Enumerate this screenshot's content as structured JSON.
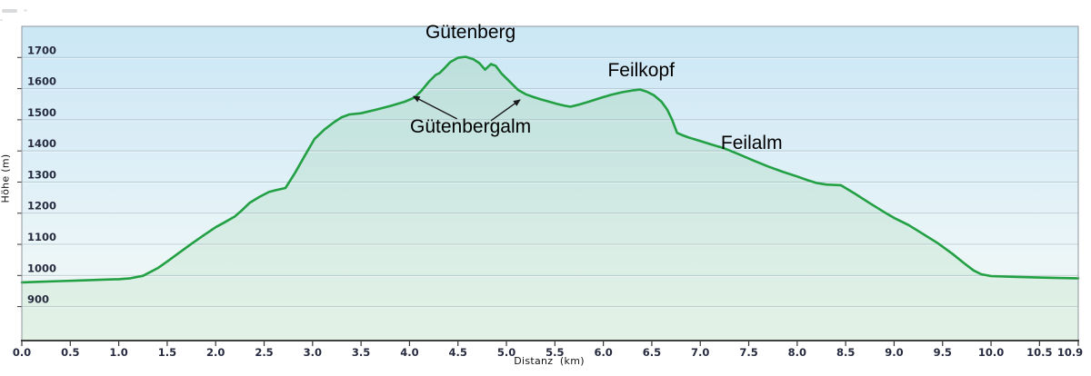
{
  "chart_data": {
    "type": "area",
    "title": "",
    "xlabel": "Distanz  (km)",
    "ylabel": "Höhe (m)",
    "xlim": [
      0,
      10.9
    ],
    "ylim": [
      791,
      1800
    ],
    "grid": "horizontal-only",
    "legend": "none",
    "x_tick_labels": [
      "0.0",
      "0.5",
      "1.0",
      "1.5",
      "2.0",
      "2.5",
      "3.0",
      "3.5",
      "4.0",
      "4.5",
      "5.0",
      "5.5",
      "6.0",
      "6.5",
      "7.0",
      "7.5",
      "8.0",
      "8.5",
      "9.0",
      "9.5",
      "10.0",
      "10.5",
      "10.9"
    ],
    "y_tick_labels": [
      "900",
      "1000",
      "1100",
      "1200",
      "1300",
      "1400",
      "1500",
      "1600",
      "1700"
    ],
    "series": [
      {
        "name": "elevation-profile",
        "units": {
          "x": "km",
          "y": "m"
        },
        "points": [
          [
            0.0,
            978
          ],
          [
            0.2,
            980
          ],
          [
            0.4,
            982
          ],
          [
            0.6,
            984
          ],
          [
            0.8,
            986
          ],
          [
            1.0,
            988
          ],
          [
            1.12,
            991
          ],
          [
            1.25,
            999
          ],
          [
            1.4,
            1023
          ],
          [
            1.5,
            1045
          ],
          [
            1.62,
            1072
          ],
          [
            1.75,
            1102
          ],
          [
            1.88,
            1130
          ],
          [
            2.0,
            1155
          ],
          [
            2.1,
            1172
          ],
          [
            2.2,
            1190
          ],
          [
            2.28,
            1212
          ],
          [
            2.35,
            1233
          ],
          [
            2.45,
            1252
          ],
          [
            2.55,
            1268
          ],
          [
            2.62,
            1274
          ],
          [
            2.72,
            1281
          ],
          [
            2.82,
            1330
          ],
          [
            2.92,
            1385
          ],
          [
            3.02,
            1438
          ],
          [
            3.12,
            1468
          ],
          [
            3.22,
            1492
          ],
          [
            3.3,
            1508
          ],
          [
            3.38,
            1517
          ],
          [
            3.5,
            1521
          ],
          [
            3.65,
            1532
          ],
          [
            3.8,
            1544
          ],
          [
            3.95,
            1558
          ],
          [
            4.05,
            1571
          ],
          [
            4.12,
            1592
          ],
          [
            4.2,
            1622
          ],
          [
            4.27,
            1644
          ],
          [
            4.31,
            1650
          ],
          [
            4.35,
            1662
          ],
          [
            4.42,
            1685
          ],
          [
            4.5,
            1699
          ],
          [
            4.58,
            1702
          ],
          [
            4.66,
            1694
          ],
          [
            4.72,
            1682
          ],
          [
            4.78,
            1661
          ],
          [
            4.84,
            1679
          ],
          [
            4.89,
            1673
          ],
          [
            4.95,
            1648
          ],
          [
            5.03,
            1624
          ],
          [
            5.12,
            1596
          ],
          [
            5.2,
            1582
          ],
          [
            5.27,
            1574
          ],
          [
            5.35,
            1566
          ],
          [
            5.43,
            1559
          ],
          [
            5.52,
            1551
          ],
          [
            5.6,
            1545
          ],
          [
            5.66,
            1542
          ],
          [
            5.75,
            1549
          ],
          [
            5.85,
            1558
          ],
          [
            5.97,
            1570
          ],
          [
            6.08,
            1580
          ],
          [
            6.2,
            1589
          ],
          [
            6.3,
            1594
          ],
          [
            6.38,
            1597
          ],
          [
            6.45,
            1590
          ],
          [
            6.52,
            1579
          ],
          [
            6.6,
            1558
          ],
          [
            6.66,
            1532
          ],
          [
            6.71,
            1500
          ],
          [
            6.76,
            1458
          ],
          [
            6.82,
            1450
          ],
          [
            6.88,
            1443
          ],
          [
            7.0,
            1432
          ],
          [
            7.1,
            1422
          ],
          [
            7.25,
            1408
          ],
          [
            7.4,
            1389
          ],
          [
            7.55,
            1369
          ],
          [
            7.7,
            1350
          ],
          [
            7.85,
            1333
          ],
          [
            8.0,
            1318
          ],
          [
            8.1,
            1307
          ],
          [
            8.2,
            1297
          ],
          [
            8.3,
            1292
          ],
          [
            8.45,
            1290
          ],
          [
            8.6,
            1262
          ],
          [
            8.75,
            1232
          ],
          [
            8.9,
            1203
          ],
          [
            9.0,
            1185
          ],
          [
            9.15,
            1162
          ],
          [
            9.3,
            1133
          ],
          [
            9.45,
            1104
          ],
          [
            9.6,
            1070
          ],
          [
            9.72,
            1040
          ],
          [
            9.82,
            1016
          ],
          [
            9.9,
            1004
          ],
          [
            10.0,
            998
          ],
          [
            10.2,
            996
          ],
          [
            10.45,
            994
          ],
          [
            10.7,
            992
          ],
          [
            10.9,
            991
          ]
        ]
      }
    ],
    "annotations": [
      {
        "id": "guetenberg",
        "text": "Gütenberg",
        "km": 4.63,
        "m": 1762
      },
      {
        "id": "feilkopf",
        "text": "Feilkopf",
        "km": 6.39,
        "m": 1640
      },
      {
        "id": "guetenbergalm",
        "text": "Gütenbergalm",
        "km": 4.63,
        "m": 1459
      },
      {
        "id": "feilalm",
        "text": "Feilalm",
        "km": 7.53,
        "m": 1406
      }
    ],
    "arrows": [
      {
        "from": {
          "km": 4.49,
          "m": 1503
        },
        "to": {
          "km": 4.04,
          "m": 1575
        }
      },
      {
        "from": {
          "km": 4.84,
          "m": 1497
        },
        "to": {
          "km": 5.14,
          "m": 1564
        }
      }
    ],
    "colors": {
      "line": "#22a043",
      "fill_top": "rgba(150,205,165,0.32)",
      "fill_bottom": "rgba(168,216,178,0.20)",
      "bg_top": "#cbe7f5",
      "bg_mid": "#dceef7",
      "bg_low": "#ecf6f7",
      "bg_bottom": "#f1f8f1",
      "grid": "rgba(103,134,150,0.34)",
      "grid_highlight": "rgba(255,255,255,0.55)",
      "border": "#8f969d",
      "axis": "#3f3f3f",
      "tick": "#333333",
      "tick_label": "#262b3f",
      "annotation": "#000000",
      "arrow": "#1a1a1a"
    }
  }
}
